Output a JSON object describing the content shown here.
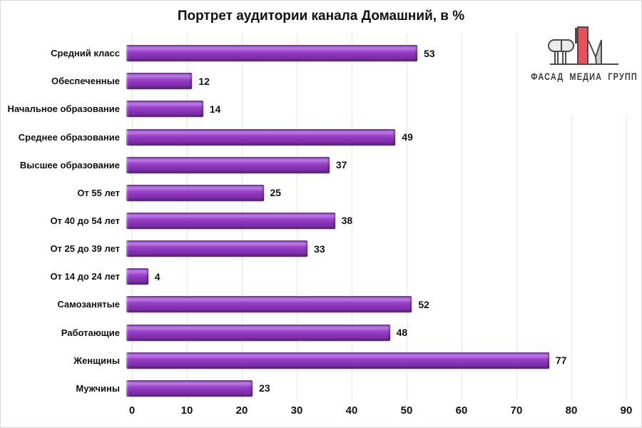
{
  "chart_data": {
    "type": "bar",
    "orientation": "horizontal",
    "title": "Портрет аудитории канала Домашний, в %",
    "categories": [
      "Средний класс",
      "Обеспеченные",
      "Начальное образование",
      "Среднее образование",
      "Высшее образование",
      "От 55 лет",
      "От 40 до 54 лет",
      "От 25 до 39 лет",
      "От 14 до 24 лет",
      "Самозанятые",
      "Работающие",
      "Женщины",
      "Мужчины"
    ],
    "values": [
      53,
      12,
      14,
      49,
      37,
      25,
      38,
      33,
      4,
      52,
      48,
      77,
      23
    ],
    "xlabel": "",
    "ylabel": "",
    "xlim": [
      0,
      90
    ],
    "xticks": [
      0,
      10,
      20,
      30,
      40,
      50,
      60,
      70,
      80,
      90
    ],
    "grid": "vertical-only",
    "legend": "none",
    "colors": {
      "bar_main": "#8834b8",
      "bar_highlight": "#bb7ae4",
      "bar_shadow": "#552074",
      "gridline": "#e5e5e5",
      "text": "#111111"
    }
  },
  "logo": {
    "text": "ФАСАД МЕДИА ГРУПП",
    "colors": {
      "red": "#e8505a",
      "gray": "#cbcbcb",
      "light": "#ebebeb",
      "outline": "#4b4b4b",
      "text": "#3b3b3b"
    }
  }
}
